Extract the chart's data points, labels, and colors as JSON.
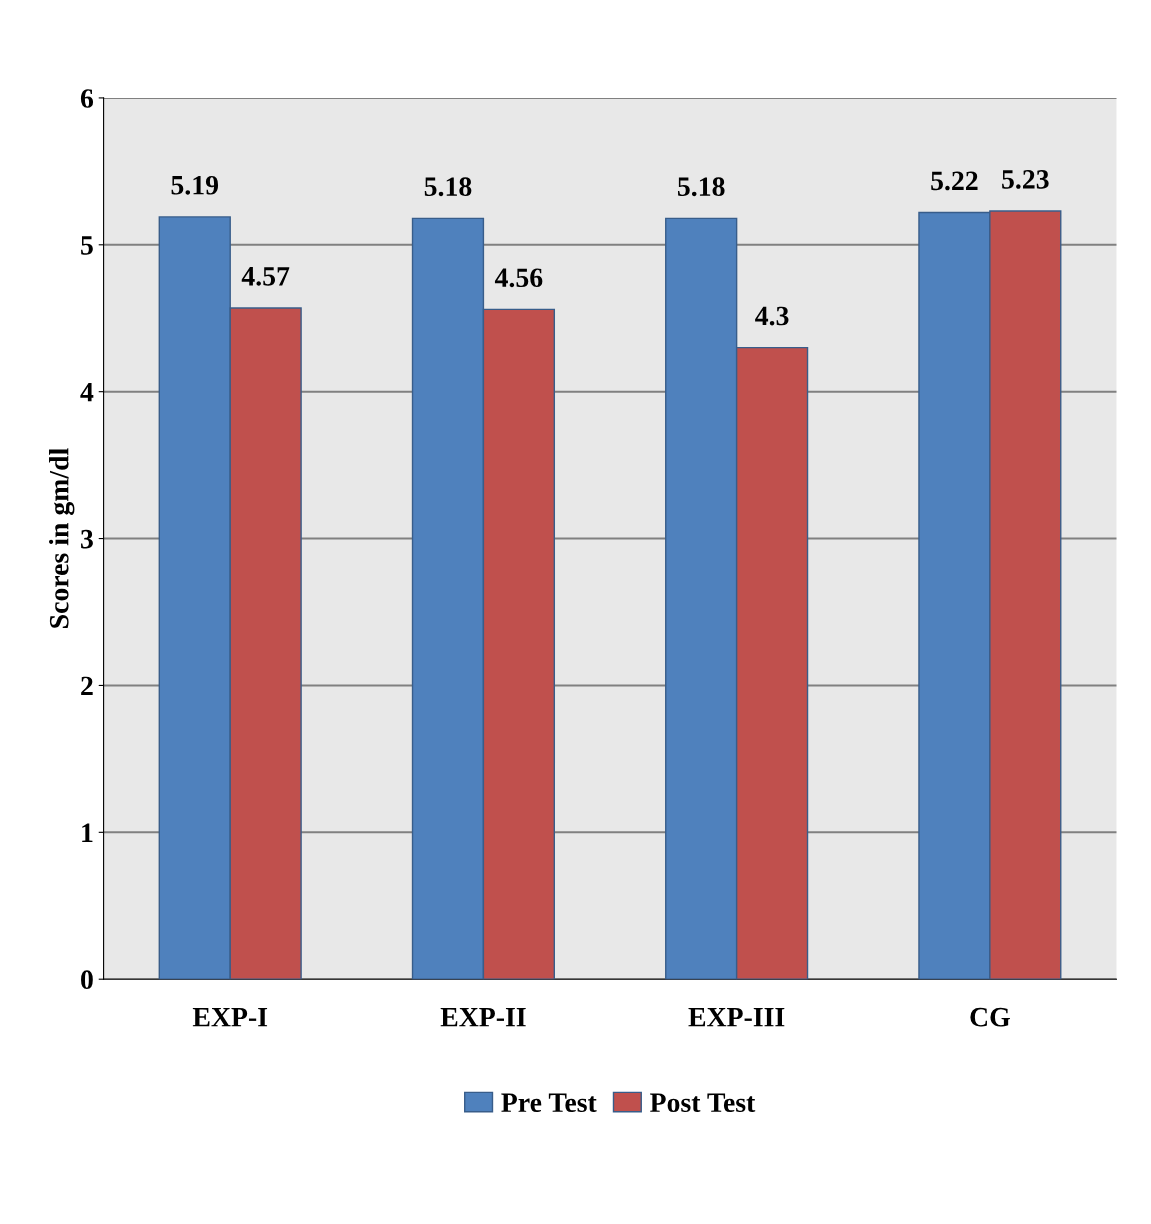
{
  "chart_data": {
    "type": "bar",
    "ylabel": "Scores in gm/dl",
    "categories": [
      "EXP-I",
      "EXP-II",
      "EXP-III",
      "CG"
    ],
    "series": [
      {
        "name": "Pre Test",
        "color": "#4f81bd",
        "values": [
          5.19,
          5.18,
          5.18,
          5.22
        ]
      },
      {
        "name": "Post Test",
        "color": "#c0504d",
        "values": [
          4.57,
          4.56,
          4.3,
          5.23
        ]
      }
    ],
    "ylim": [
      0,
      6
    ],
    "yticks": [
      0,
      1,
      2,
      3,
      4,
      5,
      6
    ],
    "grid": "y",
    "legend": "bottom",
    "data_labels": true
  }
}
